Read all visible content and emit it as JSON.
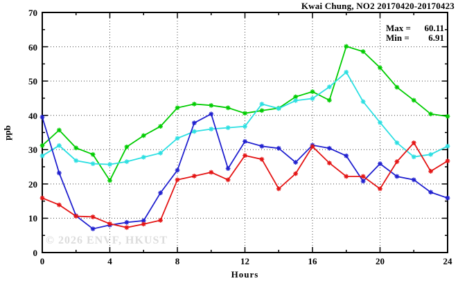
{
  "header": {
    "title": "Kwai Chung, NO2 20170420-20170423"
  },
  "stats": {
    "max_label": "Max =",
    "max_value": "60.11",
    "min_label": "Min =",
    "min_value": "6.91"
  },
  "watermark": "© 2026 ENVF, HKUST",
  "colors": {
    "series_green": "#00cc00",
    "series_cyan": "#2bdfe2",
    "series_blue": "#2020cf",
    "series_red": "#e41414",
    "axis": "#000000",
    "grid": "#444444",
    "watermark": "#dcdcdc"
  },
  "chart_data": {
    "type": "line",
    "title": "Kwai Chung, NO2 20170420-20170423",
    "xlabel": "Hours",
    "ylabel": "ppb",
    "xlim": [
      0,
      24
    ],
    "ylim": [
      0,
      70
    ],
    "x_major_ticks": [
      0,
      4,
      8,
      12,
      16,
      20,
      24
    ],
    "x_minor_ticks": [
      2,
      6,
      10,
      14,
      18,
      22
    ],
    "y_major_ticks": [
      0,
      10,
      20,
      30,
      40,
      50,
      60,
      70
    ],
    "y_minor_ticks": [
      5,
      15,
      25,
      35,
      45,
      55,
      65
    ],
    "grid": true,
    "marker": "asterisk",
    "x": [
      0,
      1,
      2,
      3,
      4,
      5,
      6,
      7,
      8,
      9,
      10,
      11,
      12,
      13,
      14,
      15,
      16,
      17,
      18,
      19,
      20,
      21,
      22,
      23,
      24
    ],
    "series": [
      {
        "name": "green-line",
        "color": "#00cc00",
        "values": [
          31.2,
          35.7,
          30.5,
          28.6,
          21.0,
          30.8,
          34.1,
          36.8,
          42.2,
          43.3,
          42.9,
          42.2,
          40.6,
          41.4,
          42.1,
          45.4,
          46.9,
          44.4,
          60.11,
          58.6,
          53.9,
          48.2,
          44.4,
          40.4,
          39.7
        ]
      },
      {
        "name": "cyan-line",
        "color": "#2bdfe2",
        "values": [
          28.2,
          31.2,
          26.8,
          25.9,
          25.7,
          26.5,
          27.8,
          29.0,
          33.3,
          35.3,
          36.0,
          36.4,
          36.8,
          43.3,
          42.0,
          44.3,
          44.9,
          48.3,
          52.6,
          44.0,
          37.9,
          32.0,
          27.9,
          28.6,
          31.0
        ]
      },
      {
        "name": "blue-line",
        "color": "#2020cf",
        "values": [
          39.5,
          23.2,
          10.7,
          6.91,
          8.0,
          8.8,
          9.3,
          17.4,
          24.0,
          37.8,
          40.4,
          24.5,
          32.4,
          31.0,
          30.4,
          26.3,
          31.3,
          30.4,
          28.2,
          20.8,
          25.9,
          22.2,
          21.2,
          17.6,
          15.9
        ]
      },
      {
        "name": "red-line",
        "color": "#e41414",
        "values": [
          15.9,
          13.9,
          10.6,
          10.4,
          8.4,
          7.3,
          8.3,
          9.4,
          21.2,
          22.3,
          23.4,
          21.2,
          28.3,
          27.2,
          18.6,
          23.0,
          30.9,
          26.1,
          22.2,
          22.2,
          18.6,
          26.5,
          32.0,
          23.7,
          26.7
        ]
      }
    ],
    "annotations": {
      "max": 60.11,
      "min": 6.91
    }
  }
}
